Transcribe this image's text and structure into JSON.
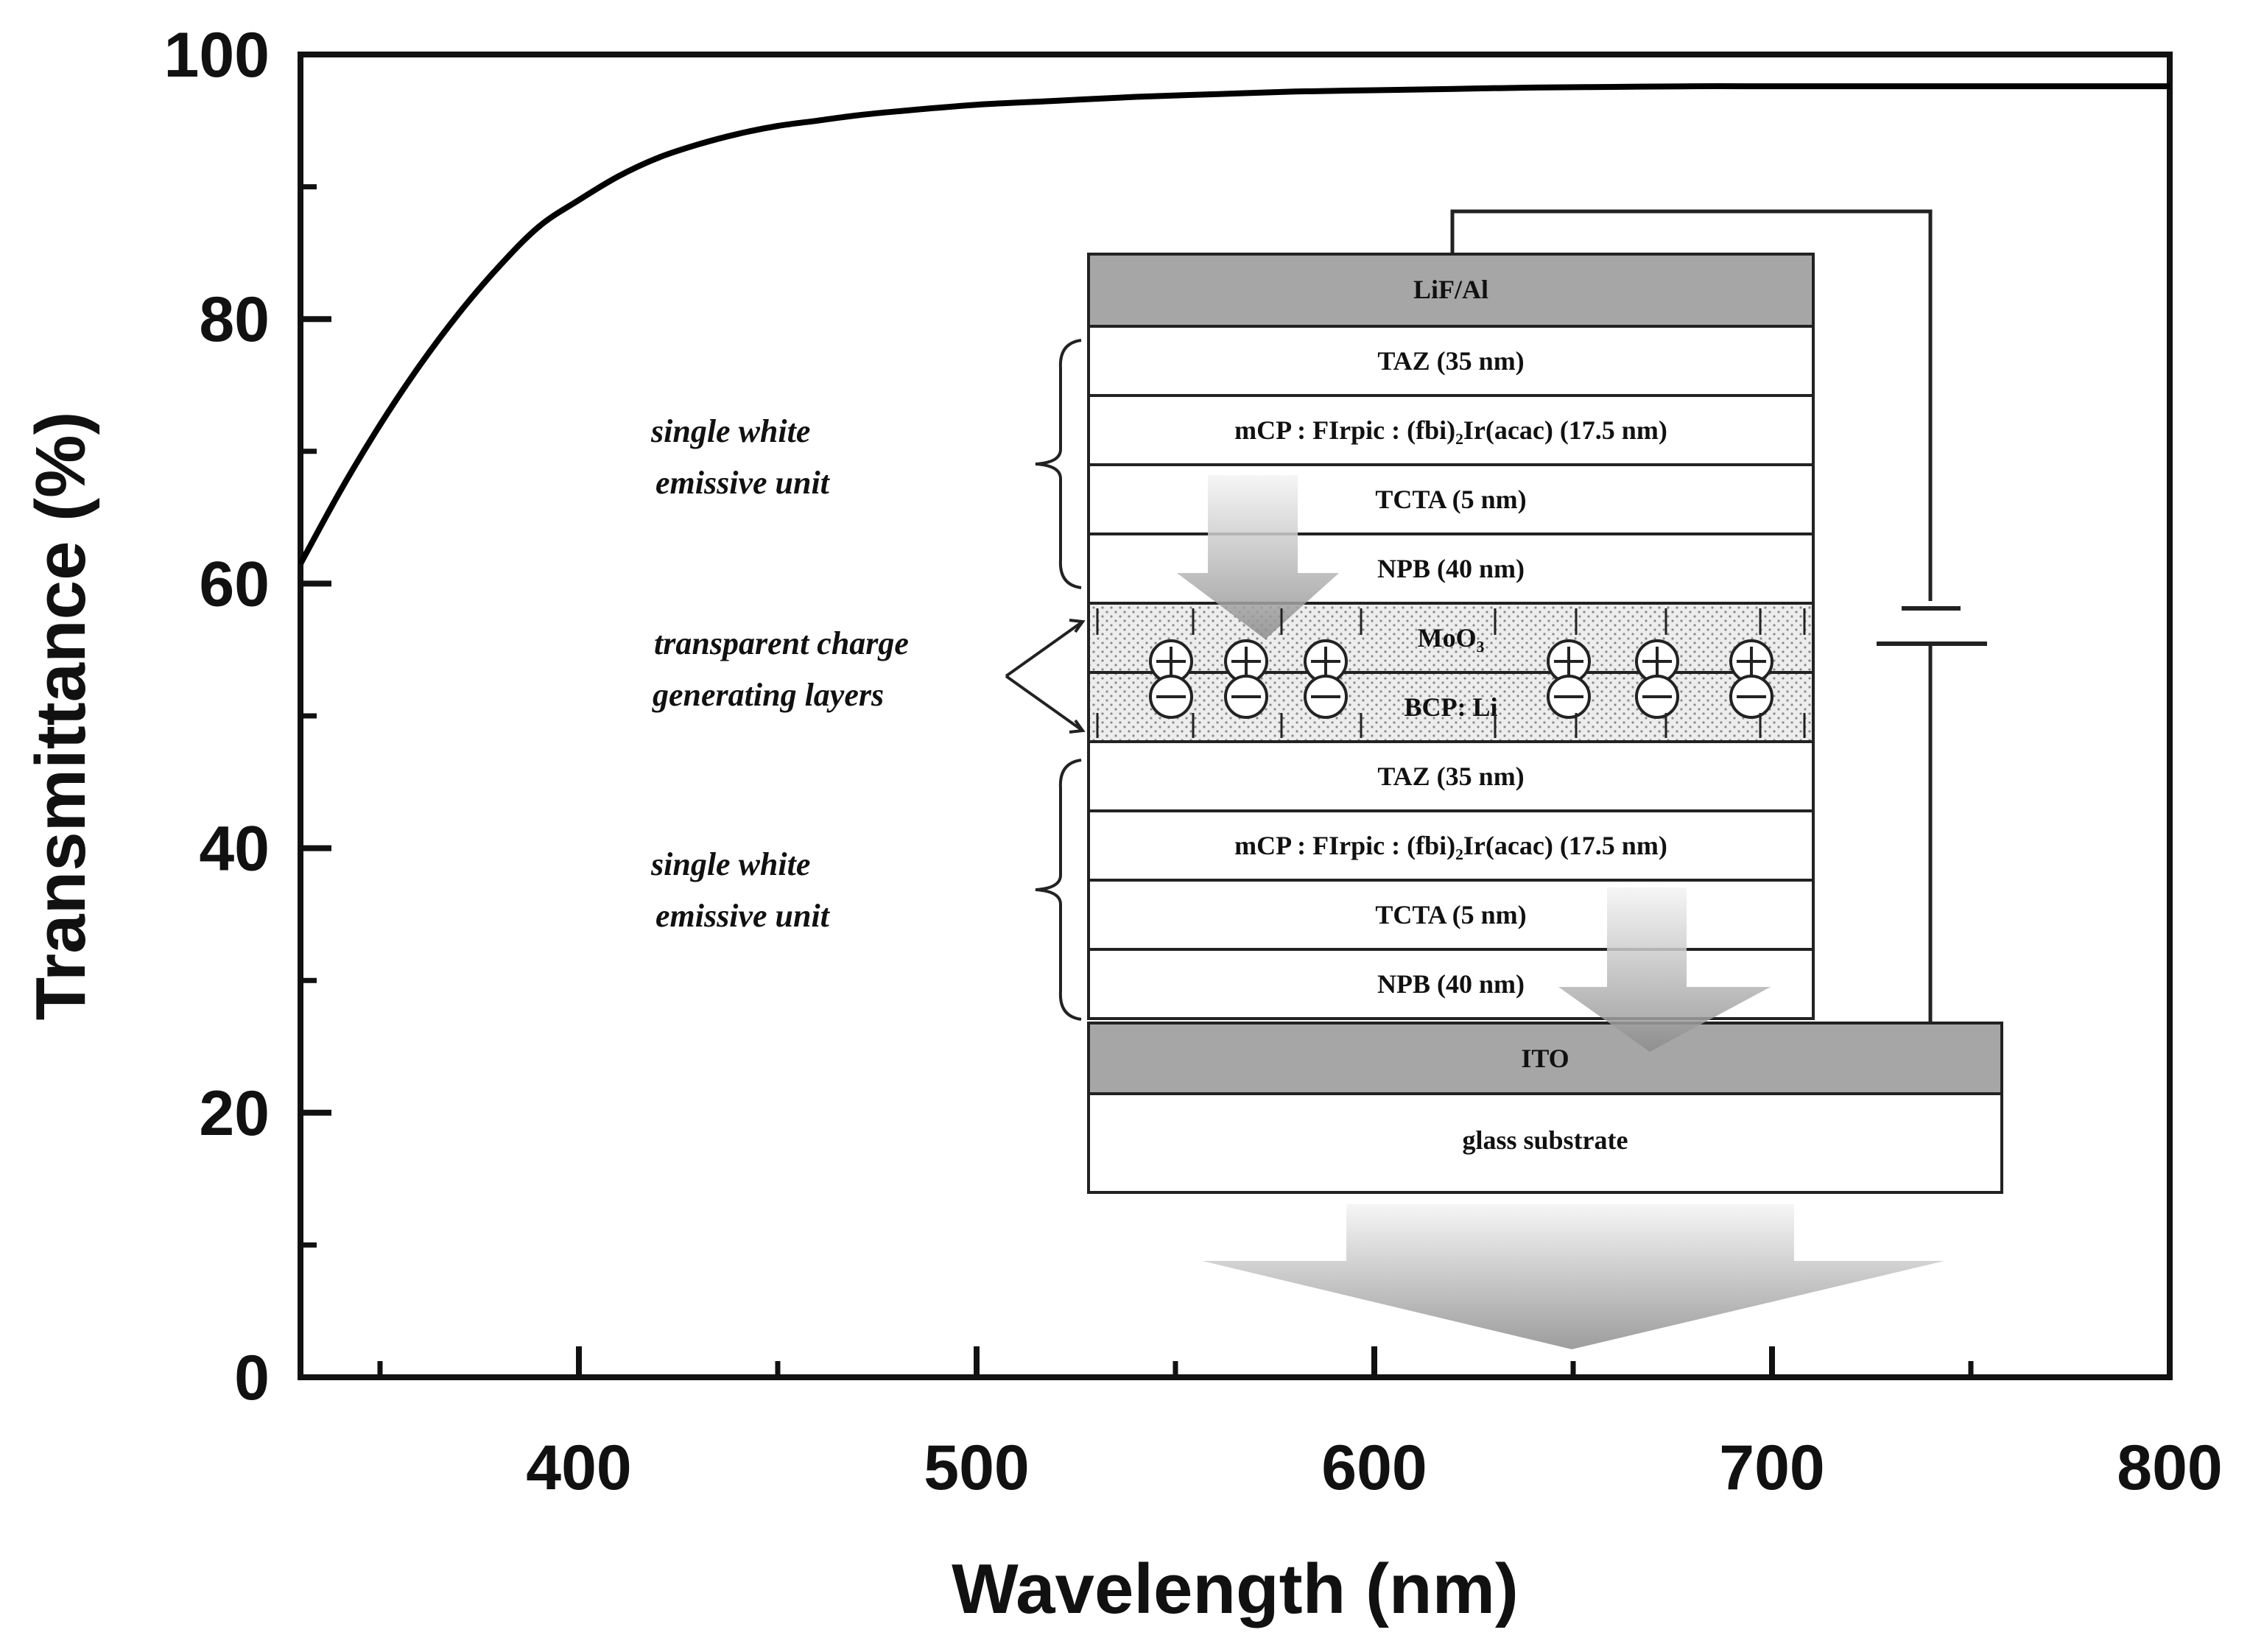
{
  "chart_data": {
    "type": "line",
    "xlabel": "Wavelength (nm)",
    "ylabel": "Transmittance (%)",
    "xlim": [
      330,
      800
    ],
    "ylim": [
      0,
      100
    ],
    "x_ticks": [
      400,
      500,
      600,
      700,
      800
    ],
    "y_ticks": [
      0,
      20,
      40,
      60,
      80,
      100
    ],
    "x_minor_ticks": [
      350,
      450,
      550,
      650,
      750
    ],
    "y_minor_ticks": [
      10,
      30,
      50,
      70,
      90
    ],
    "grid": false,
    "series": [
      {
        "color": "#000000",
        "x": [
          330,
          340,
          350,
          360,
          370,
          380,
          390,
          400,
          410,
          420,
          430,
          440,
          450,
          460,
          470,
          480,
          500,
          520,
          540,
          560,
          580,
          600,
          620,
          640,
          660,
          680,
          700,
          720,
          740,
          760,
          780,
          800
        ],
        "y": [
          61.5,
          67.0,
          72.0,
          76.5,
          80.5,
          84.0,
          87.0,
          89.0,
          90.8,
          92.2,
          93.2,
          94.0,
          94.6,
          95.0,
          95.4,
          95.7,
          96.2,
          96.5,
          96.8,
          97.0,
          97.2,
          97.3,
          97.4,
          97.5,
          97.55,
          97.6,
          97.6,
          97.6,
          97.6,
          97.6,
          97.6,
          97.6
        ]
      }
    ]
  },
  "inset": {
    "layers_top": [
      {
        "label": "LiF/Al",
        "fill": "#a6a6a6"
      },
      {
        "label": "TAZ (35 nm)",
        "fill": "#ffffff"
      },
      {
        "label": "mCP : FIrpic : (fbi)₂Ir(acac) (17.5 nm)",
        "fill": "#ffffff"
      },
      {
        "label": "TCTA (5 nm)",
        "fill": "#ffffff"
      },
      {
        "label": "NPB (40 nm)",
        "fill": "#ffffff"
      }
    ],
    "cgl": [
      {
        "label": "MoO₃",
        "fill": "#e4e4e4"
      },
      {
        "label": "BCP: Li",
        "fill": "#e4e4e4"
      }
    ],
    "layers_bottom": [
      {
        "label": "TAZ (35 nm)",
        "fill": "#ffffff"
      },
      {
        "label": "mCP : FIrpic : (fbi)₂Ir(acac) (17.5 nm)",
        "fill": "#ffffff"
      },
      {
        "label": "TCTA (5 nm)",
        "fill": "#ffffff"
      },
      {
        "label": "NPB (40 nm)",
        "fill": "#ffffff"
      }
    ],
    "ito": {
      "label": "ITO",
      "fill": "#a6a6a6"
    },
    "glass": {
      "label": "glass substrate",
      "fill": "#ffffff"
    },
    "annotations": {
      "unit_top_line1": "single     white",
      "unit_top_line2": "emissive unit",
      "cgl_line1": "transparent charge",
      "cgl_line2": "generating layers",
      "unit_bottom_line1": "single     white",
      "unit_bottom_line2": "emissive unit"
    }
  }
}
